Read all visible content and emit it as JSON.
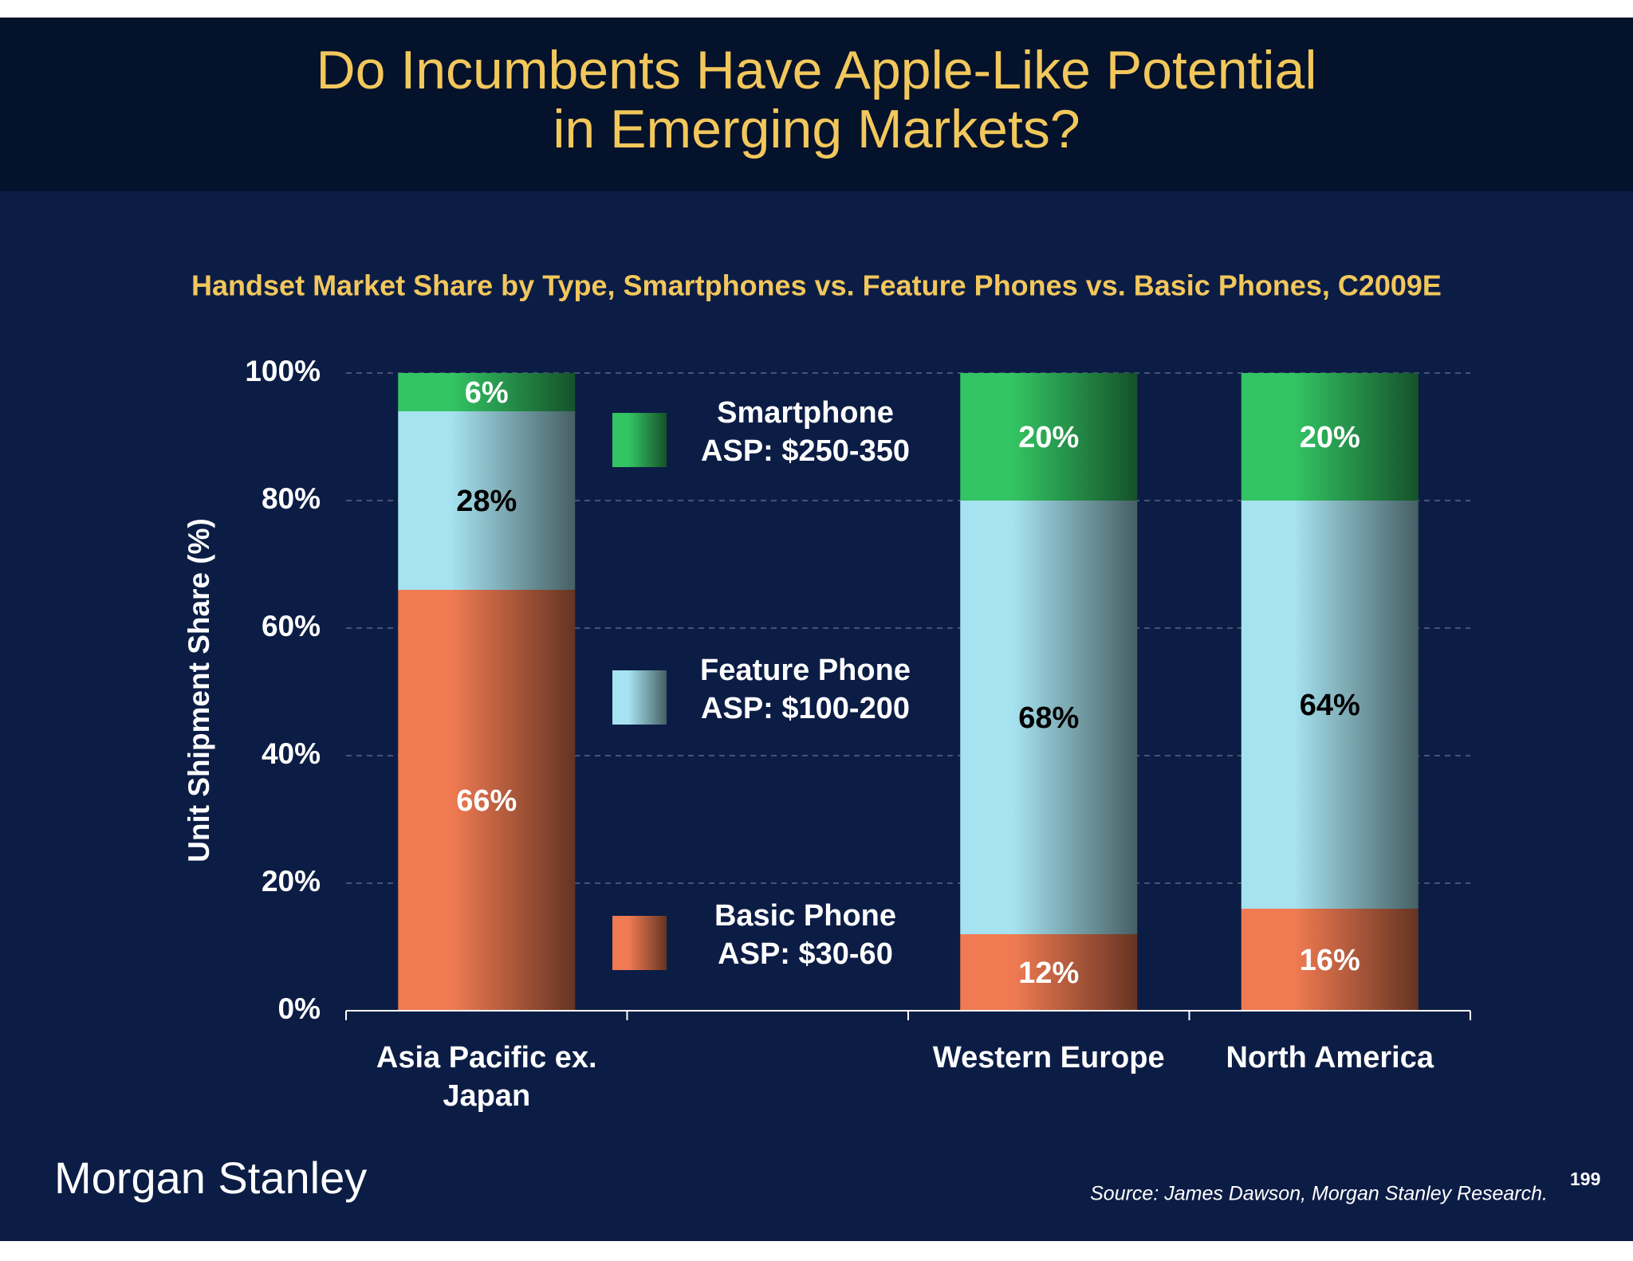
{
  "chart_data": {
    "type": "stacked-bar",
    "title_lines": [
      "Do Incumbents Have Apple-Like Potential",
      "in Emerging Markets?"
    ],
    "subtitle": "Handset Market Share by Type, Smartphones vs. Feature Phones vs. Basic Phones, C2009E",
    "y_label": "Unit Shipment Share (%)",
    "categories": [
      "Asia Pacific ex. Japan",
      null,
      "Western Europe",
      "North America"
    ],
    "series": [
      {
        "name": "Basic Phone",
        "asp": "ASP: $30-60",
        "color": "#f07b52",
        "label_color": "#ffffff",
        "values": [
          66,
          null,
          12,
          16
        ],
        "value_labels": [
          "66%",
          null,
          "12%",
          "16%"
        ]
      },
      {
        "name": "Feature Phone",
        "asp": "ASP: $100-200",
        "color": "#a6e2ef",
        "label_color": "#000000",
        "values": [
          28,
          null,
          68,
          64
        ],
        "value_labels": [
          "28%",
          null,
          "68%",
          "64%"
        ]
      },
      {
        "name": "Smartphone",
        "asp": "ASP: $250-350",
        "color": "#33c463",
        "label_color": "#ffffff",
        "values": [
          6,
          null,
          20,
          20
        ],
        "value_labels": [
          "6%",
          null,
          "20%",
          "20%"
        ]
      }
    ],
    "ylim": [
      0,
      100
    ],
    "yticks": [
      {
        "value": 0,
        "label": "0%"
      },
      {
        "value": 20,
        "label": "20%"
      },
      {
        "value": 40,
        "label": "40%"
      },
      {
        "value": 60,
        "label": "60%"
      },
      {
        "value": 80,
        "label": "80%"
      },
      {
        "value": 100,
        "label": "100%"
      }
    ],
    "grid": true
  },
  "footer": {
    "logo": "Morgan Stanley",
    "source": "Source: James Dawson, Morgan Stanley Research.",
    "page": "199"
  }
}
